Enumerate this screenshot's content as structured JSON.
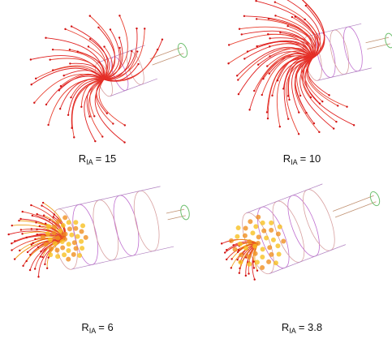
{
  "panels": [
    {
      "symbol": "R",
      "subscript": "IA",
      "rest": "= 15"
    },
    {
      "symbol": "R",
      "subscript": "IA",
      "rest": "= 10"
    },
    {
      "symbol": "R",
      "subscript": "IA",
      "rest": "= 6"
    },
    {
      "symbol": "R",
      "subscript": "IA",
      "rest": "= 3.8"
    }
  ]
}
